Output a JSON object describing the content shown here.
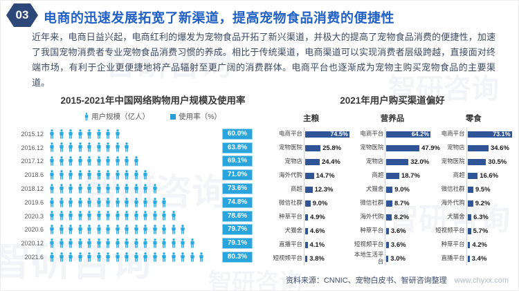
{
  "page": {
    "badge": "03",
    "title": "电商的迅速发展拓宽了新渠道，提高宠物食品消费的便捷性",
    "body": "近年来，电商日益兴起，电商红利的爆发为宠物食品开拓了新兴渠道，并极大的提高了宠物食品消费的便捷性，加速了我国宠物消费者专业宠物食品消费习惯的养成。相比于传统渠道，电商渠道可以实现消费者层级跨越，直接面对终端市场，有利于企业更便捷地将产品辐射至更广阔的消费群体。电商平台也逐渐成为宠物主购买宠物食品的主要渠道。",
    "watermark": "智研咨询"
  },
  "footer": {
    "source": "资料来源：CNNIC、宠物白皮书、智研咨询整理",
    "url": "www.chyxx.com"
  },
  "colors": {
    "title_blue": "#2161C6",
    "badge_navy": "#2E4779",
    "pictogram_cyan": "#29ABE2",
    "rate_badge_cyan": "#2AA4DD",
    "bar_blue": "#2F5597"
  },
  "chart_data": [
    {
      "type": "bar",
      "subtype": "pictogram-rows",
      "title": "2015-2021年中国网络购物用户规模及使用率",
      "legend": [
        {
          "label": "用户规模（亿人）",
          "marker": "person-icon"
        },
        {
          "label": "使用率（%）",
          "marker": "square"
        }
      ],
      "categories": [
        "2015.12",
        "2016.12",
        "2017.12",
        "2018.6",
        "2018.12",
        "2019.6",
        "2020.3",
        "2020.6",
        "2020.12",
        "2021.6"
      ],
      "series": [
        {
          "name": "用户规模（亿人，图标数）",
          "values": [
            8,
            9,
            10,
            11,
            12,
            13,
            14,
            15,
            16,
            17
          ]
        },
        {
          "name": "使用率（%）",
          "values": [
            60.0,
            63.8,
            69.1,
            71.0,
            73.6,
            74.8,
            78.6,
            79.7,
            79.1,
            80.3
          ]
        }
      ],
      "legend_position": "top"
    },
    {
      "type": "bar",
      "subtype": "horizontal-grouped",
      "title": "2021年用户购买渠道偏好",
      "value_suffix": "%",
      "groups": [
        {
          "name": "主粮",
          "categories": [
            "电商平台",
            "宠物医院",
            "宠物店",
            "海外代购",
            "商超",
            "微信社群",
            "种草平台",
            "犬猫舍",
            "直播平台",
            "短视频平台"
          ],
          "values": [
            74.5,
            25.8,
            24.4,
            14.7,
            12.3,
            9.0,
            4.9,
            4.6,
            4.1,
            3.8
          ]
        },
        {
          "name": "营养品",
          "categories": [
            "电商平台",
            "宠物医院",
            "宠物店",
            "商超",
            "犬猫舍",
            "微信社群",
            "海外代购",
            "种草平台",
            "短视频平台",
            "本地生活平台"
          ],
          "values": [
            64.2,
            47.9,
            32.0,
            18.7,
            9.0,
            8.7,
            8.2,
            3.6,
            3.6,
            3.0
          ]
        },
        {
          "name": "零食",
          "categories": [
            "电商平台",
            "宠物店",
            "宠物医院",
            "商超",
            "微信社群",
            "海外代购",
            "犬猫舍",
            "短视频平台",
            "种草平台",
            "直播平台"
          ],
          "values": [
            73.1,
            34.6,
            30.5,
            16.6,
            9.5,
            9.2,
            6.3,
            5.7,
            4.2,
            3.4
          ]
        }
      ]
    }
  ]
}
